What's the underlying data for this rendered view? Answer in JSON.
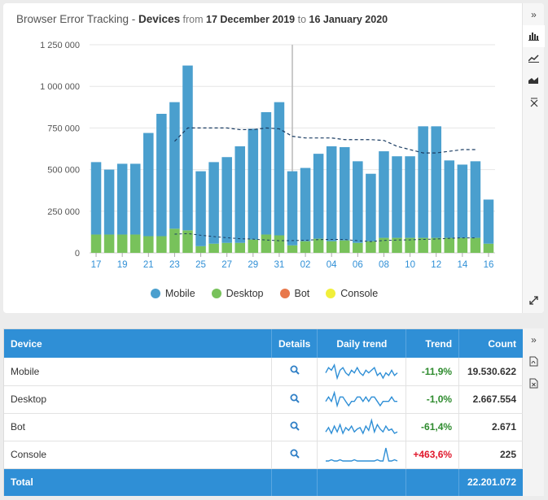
{
  "title": {
    "prefix": "Browser Error Tracking - ",
    "report": "Devices",
    "from_label": " from ",
    "from_date": "17 December 2019",
    "to_label": " to ",
    "to_date": "16 January 2020"
  },
  "colors": {
    "mobile": "#4a9fce",
    "desktop": "#78c25b",
    "bot": "#e8784b",
    "console": "#f1ef3a",
    "header_blue": "#2f8fd6"
  },
  "chart_data": {
    "type": "bar",
    "stacked": true,
    "categories": [
      "17",
      "18",
      "19",
      "20",
      "21",
      "22",
      "23",
      "24",
      "25",
      "26",
      "27",
      "28",
      "29",
      "30",
      "31",
      "01",
      "02",
      "03",
      "04",
      "05",
      "06",
      "07",
      "08",
      "09",
      "10",
      "11",
      "12",
      "13",
      "14",
      "15",
      "16"
    ],
    "x_tick_labels": [
      "17",
      "19",
      "21",
      "23",
      "25",
      "27",
      "29",
      "31",
      "02",
      "04",
      "06",
      "08",
      "10",
      "12",
      "14",
      "16"
    ],
    "y_tick_labels": [
      "0",
      "250 000",
      "500 000",
      "750 000",
      "1 000 000",
      "1 250 000"
    ],
    "ylim": [
      0,
      1250000
    ],
    "grid": true,
    "legend_position": "bottom",
    "series": [
      {
        "name": "Mobile",
        "values": [
          435000,
          390000,
          425000,
          425000,
          620000,
          735000,
          760000,
          990000,
          450000,
          490000,
          515000,
          580000,
          665000,
          735000,
          800000,
          445000,
          440000,
          510000,
          570000,
          560000,
          490000,
          405000,
          520000,
          490000,
          490000,
          670000,
          670000,
          465000,
          440000,
          460000,
          265000
        ]
      },
      {
        "name": "Desktop",
        "values": [
          110000,
          110000,
          110000,
          110000,
          100000,
          100000,
          145000,
          135000,
          40000,
          55000,
          60000,
          60000,
          80000,
          110000,
          105000,
          45000,
          70000,
          85000,
          70000,
          75000,
          60000,
          70000,
          90000,
          90000,
          90000,
          90000,
          90000,
          90000,
          90000,
          90000,
          55000
        ]
      },
      {
        "name": "Bot",
        "values": [
          200,
          150,
          150,
          150,
          150,
          150,
          200,
          200,
          100,
          100,
          100,
          100,
          150,
          150,
          150,
          100,
          100,
          100,
          100,
          100,
          100,
          100,
          100,
          100,
          100,
          100,
          100,
          100,
          100,
          100,
          80
        ]
      },
      {
        "name": "Console",
        "values": [
          5,
          5,
          5,
          5,
          5,
          5,
          5,
          5,
          5,
          5,
          5,
          5,
          5,
          5,
          5,
          5,
          5,
          5,
          5,
          5,
          5,
          5,
          5,
          5,
          5,
          5,
          5,
          5,
          5,
          5,
          5
        ]
      }
    ],
    "trend_line": {
      "start_index": 6,
      "end_index": 29,
      "values": [
        670000,
        750000,
        750000,
        750000,
        750000,
        740000,
        740000,
        750000,
        745000,
        700000,
        690000,
        690000,
        690000,
        680000,
        680000,
        680000,
        675000,
        640000,
        620000,
        600000,
        600000,
        610000,
        620000,
        620000
      ]
    }
  },
  "legend": [
    {
      "label": "Mobile",
      "key": "mobile"
    },
    {
      "label": "Desktop",
      "key": "desktop"
    },
    {
      "label": "Bot",
      "key": "bot"
    },
    {
      "label": "Console",
      "key": "console"
    }
  ],
  "table": {
    "headers": {
      "device": "Device",
      "details": "Details",
      "daily_trend": "Daily trend",
      "trend": "Trend",
      "count": "Count"
    },
    "rows": [
      {
        "device": "Mobile",
        "trend": "-11,9%",
        "trend_dir": "neg",
        "count": "19.530.622",
        "spark": [
          6,
          8,
          7,
          9,
          4,
          7,
          8,
          6,
          5,
          7,
          6,
          8,
          6,
          5,
          7,
          6,
          7,
          8,
          5,
          6,
          4,
          6,
          5,
          7,
          5,
          6
        ]
      },
      {
        "device": "Desktop",
        "trend": "-1,0%",
        "trend_dir": "neg",
        "count": "2.667.554",
        "spark": [
          6,
          7,
          6,
          8,
          5,
          7,
          7,
          6,
          5,
          6,
          6,
          7,
          7,
          6,
          7,
          6,
          7,
          7,
          6,
          5,
          6,
          6,
          6,
          7,
          6,
          6
        ]
      },
      {
        "device": "Bot",
        "trend": "-61,4%",
        "trend_dir": "neg",
        "count": "2.671",
        "spark": [
          4,
          7,
          3,
          8,
          4,
          9,
          3,
          7,
          5,
          8,
          4,
          6,
          7,
          3,
          8,
          5,
          12,
          4,
          9,
          6,
          4,
          8,
          5,
          6,
          3,
          4
        ]
      },
      {
        "device": "Console",
        "trend": "+463,6%",
        "trend_dir": "pos",
        "count": "225",
        "spark": [
          2,
          2,
          3,
          2,
          2,
          3,
          2,
          2,
          2,
          2,
          3,
          2,
          2,
          2,
          2,
          2,
          2,
          2,
          3,
          2,
          2,
          13,
          2,
          2,
          3,
          2
        ]
      }
    ],
    "footer": {
      "label": "Total",
      "count": "22.201.072"
    }
  }
}
